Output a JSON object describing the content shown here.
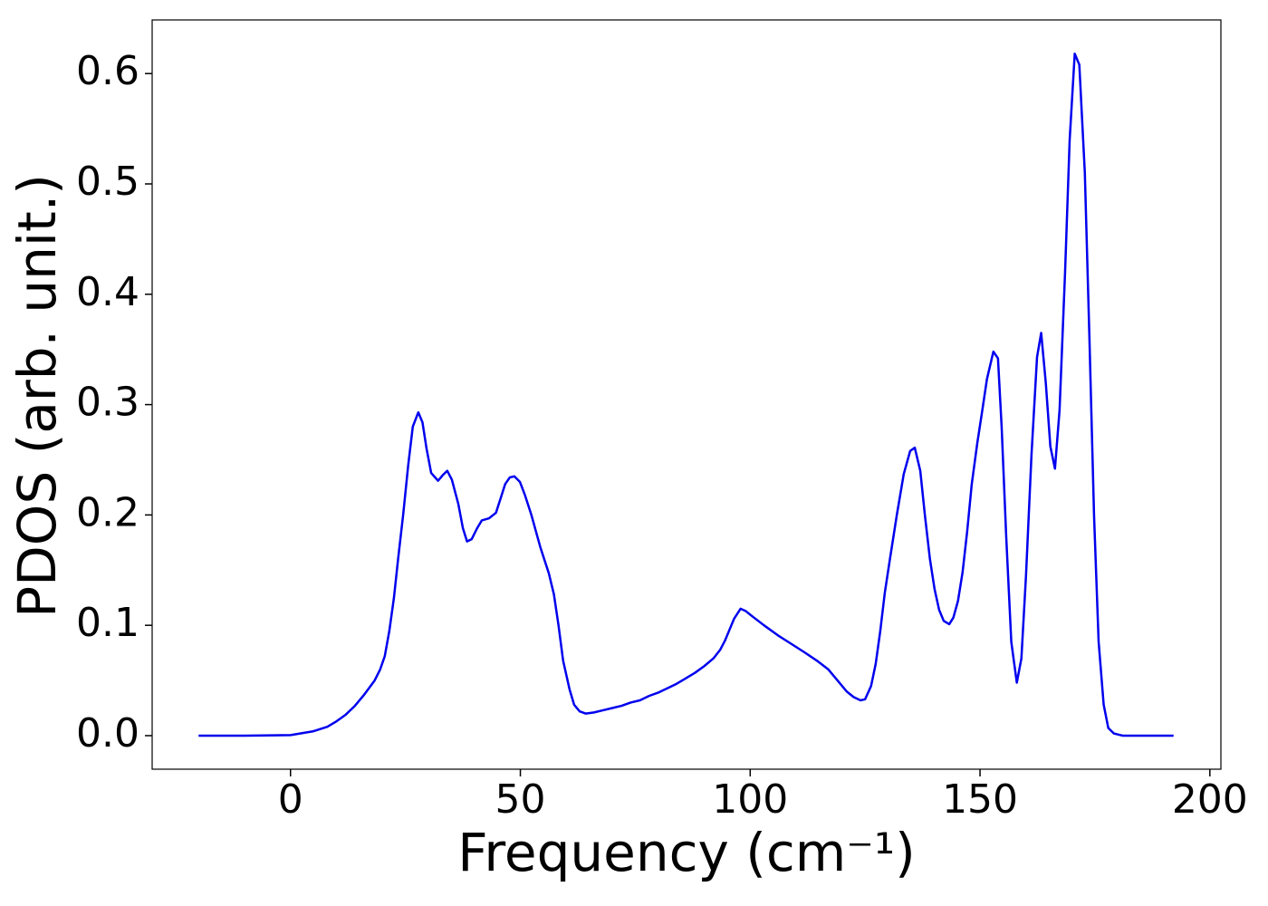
{
  "chart_data": {
    "type": "line",
    "xlabel": "Frequency (cm⁻¹)",
    "ylabel": "PDOS (arb. unit.)",
    "color": "#0000ee",
    "x": [
      -20,
      -10,
      0,
      5,
      8,
      10,
      12,
      14,
      16,
      18.3,
      19.5,
      20.5,
      21.5,
      22.5,
      23.4,
      24.5,
      25.6,
      26.6,
      27.8,
      28.7,
      29.6,
      30.6,
      32.1,
      33.1,
      34.1,
      35.1,
      36.5,
      37.5,
      38.4,
      39.4,
      40.6,
      41.6,
      43.2,
      44.7,
      45.7,
      46.7,
      47.7,
      48.7,
      49.9,
      51,
      52.4,
      53.4,
      54.4,
      56.2,
      57.3,
      58.3,
      59.3,
      60.7,
      61.7,
      62.9,
      64.2,
      66,
      68,
      70,
      72,
      74,
      76,
      78,
      80,
      82,
      84,
      86,
      88,
      90,
      92,
      93.5,
      94.5,
      95.5,
      96.5,
      97.9,
      99,
      100.5,
      103,
      106,
      109,
      112,
      114.5,
      117,
      119,
      121,
      122.5,
      124,
      125,
      126.3,
      127.3,
      128.3,
      129.3,
      130.4,
      131.9,
      133.4,
      134.8,
      135.8,
      137,
      138,
      139.1,
      140.1,
      141.1,
      142.1,
      143.3,
      144.2,
      145.2,
      146.2,
      147.2,
      148.2,
      149.4,
      150.5,
      151.5,
      152.9,
      153.9,
      154.7,
      155.7,
      156.8,
      158,
      159,
      160,
      161.2,
      162.4,
      163.3,
      164.3,
      165.3,
      166.3,
      167.3,
      168.5,
      169.5,
      170.6,
      171.6,
      172.8,
      173.8,
      174.8,
      175.8,
      176.9,
      177.9,
      179.1,
      181,
      192.1
    ],
    "values": [
      0,
      0,
      0.0005,
      0.004,
      0.008,
      0.013,
      0.019,
      0.027,
      0.037,
      0.05,
      0.06,
      0.072,
      0.095,
      0.125,
      0.16,
      0.2,
      0.245,
      0.28,
      0.293,
      0.284,
      0.26,
      0.238,
      0.231,
      0.236,
      0.24,
      0.232,
      0.21,
      0.188,
      0.176,
      0.178,
      0.188,
      0.195,
      0.197,
      0.202,
      0.215,
      0.228,
      0.234,
      0.235,
      0.23,
      0.218,
      0.2,
      0.185,
      0.17,
      0.147,
      0.128,
      0.1,
      0.068,
      0.042,
      0.028,
      0.022,
      0.02,
      0.021,
      0.023,
      0.025,
      0.027,
      0.03,
      0.032,
      0.036,
      0.039,
      0.043,
      0.047,
      0.052,
      0.057,
      0.063,
      0.07,
      0.078,
      0.086,
      0.096,
      0.106,
      0.115,
      0.113,
      0.108,
      0.1,
      0.091,
      0.083,
      0.075,
      0.068,
      0.06,
      0.05,
      0.04,
      0.035,
      0.032,
      0.033,
      0.045,
      0.065,
      0.095,
      0.13,
      0.16,
      0.2,
      0.237,
      0.258,
      0.261,
      0.24,
      0.2,
      0.16,
      0.133,
      0.114,
      0.104,
      0.101,
      0.107,
      0.122,
      0.148,
      0.185,
      0.228,
      0.265,
      0.295,
      0.323,
      0.348,
      0.342,
      0.28,
      0.18,
      0.085,
      0.048,
      0.07,
      0.145,
      0.255,
      0.343,
      0.365,
      0.32,
      0.262,
      0.242,
      0.295,
      0.42,
      0.54,
      0.618,
      0.608,
      0.51,
      0.36,
      0.2,
      0.085,
      0.028,
      0.007,
      0.002,
      0,
      0
    ],
    "xlim": [
      -30.1,
      202.4
    ],
    "xticks": [
      0,
      50,
      100,
      150,
      200
    ],
    "ylim": [
      -0.0304,
      0.6486
    ],
    "yticks": [
      {
        "value": 0,
        "label": "0.0"
      },
      0.1,
      0.2,
      0.3,
      0.4,
      0.5,
      0.6
    ],
    "grid": false
  }
}
